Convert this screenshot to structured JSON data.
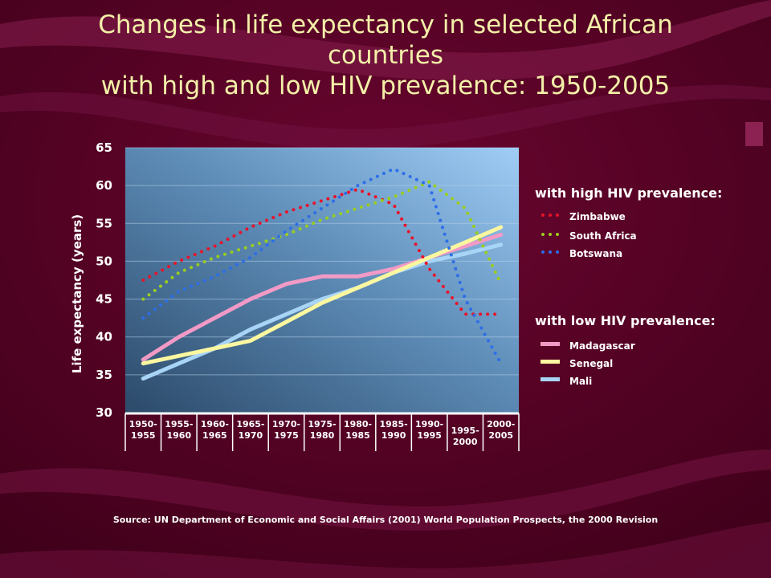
{
  "title_lines": [
    "Changes in life expectancy in selected African",
    "countries",
    "with high and low HIV prevalence: 1950-2005"
  ],
  "source": "Source: UN Department of Economic and Social Affairs (2001) World Population Prospects, the 2000 Revision",
  "colors": {
    "background": "#5a0026",
    "title": "#f4f0a8",
    "plot_top_right": "#9fcdf6",
    "plot_bottom_left": "#2c4a6a"
  },
  "legend": {
    "high_title": "with high HIV prevalence:",
    "low_title": "with low HIV prevalence:"
  },
  "chart_data": {
    "type": "line",
    "title": "Changes in life expectancy in selected African countries with high and low HIV prevalence: 1950-2005",
    "xlabel": "",
    "ylabel": "Life expectancy (years)",
    "ylim": [
      30,
      65
    ],
    "yticks": [
      30,
      35,
      40,
      45,
      50,
      55,
      60,
      65
    ],
    "grid": "horizontal",
    "legend_position": "right",
    "categories": [
      [
        "1950-",
        "1955"
      ],
      [
        "1955-",
        "1960"
      ],
      [
        "1960-",
        "1965"
      ],
      [
        "1965-",
        "1970"
      ],
      [
        "1970-",
        "1975"
      ],
      [
        "1975-",
        "1980"
      ],
      [
        "1980-",
        "1985"
      ],
      [
        "1985-",
        "1990"
      ],
      [
        "1990-",
        "1995"
      ],
      [
        "1995-",
        "2000"
      ],
      [
        "2000-",
        "2005"
      ]
    ],
    "series": [
      {
        "name": "Zimbabwe",
        "group": "high",
        "style": "dotted",
        "color": "#e8132a",
        "values": [
          47.5,
          50,
          52,
          54.5,
          56.5,
          58,
          59.5,
          57.5,
          49,
          43,
          43
        ]
      },
      {
        "name": "South Africa",
        "group": "high",
        "style": "dotted",
        "color": "#9acd1e",
        "values": [
          45,
          48.5,
          50.5,
          52,
          53.5,
          55.5,
          57,
          58.5,
          60.5,
          57,
          47
        ]
      },
      {
        "name": "Botswana",
        "group": "high",
        "style": "dotted",
        "color": "#2e6de8",
        "values": [
          42.5,
          46,
          48,
          50.5,
          54,
          57,
          60,
          62.2,
          60,
          45,
          36.5
        ]
      },
      {
        "name": "Madagascar",
        "group": "low",
        "style": "solid",
        "color": "#f29ac6",
        "values": [
          37,
          40,
          42.5,
          45,
          47,
          48,
          48,
          49,
          50.5,
          52,
          53.5
        ]
      },
      {
        "name": "Senegal",
        "group": "low",
        "style": "solid",
        "color": "#fbf7a0",
        "values": [
          36.5,
          37.5,
          38.5,
          39.5,
          42,
          44.5,
          46.5,
          48.5,
          50.5,
          52.5,
          54.5
        ]
      },
      {
        "name": "Mali",
        "group": "low",
        "style": "solid",
        "color": "#a8d4f6",
        "values": [
          34.5,
          36.5,
          38.5,
          41,
          43,
          45,
          46.5,
          48.5,
          50,
          51,
          52.2
        ]
      }
    ]
  }
}
